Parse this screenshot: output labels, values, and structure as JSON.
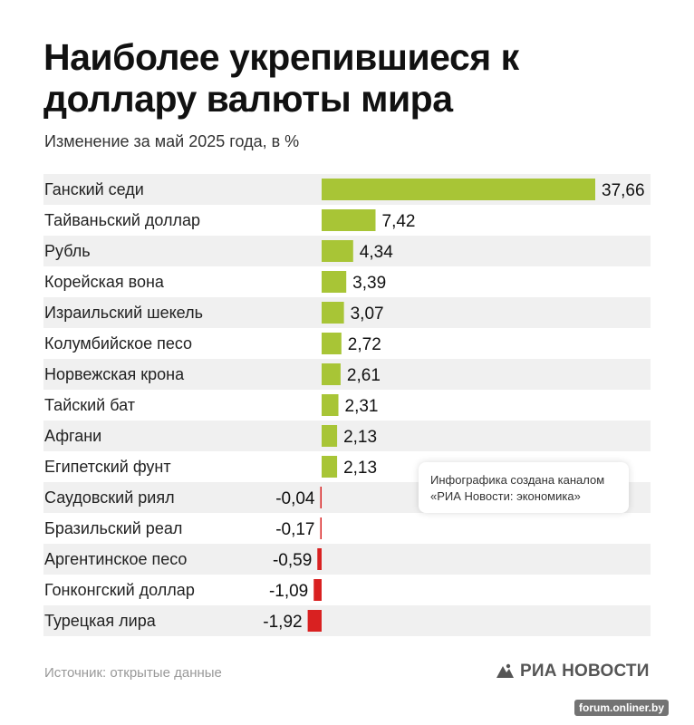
{
  "title": "Наиболее укрепившиеся к доллару валюты мира",
  "subtitle": "Изменение за май 2025 года, в %",
  "note": "Инфографика создана каналом «РИА Новости: экономика»",
  "source": "Источник: открытые данные",
  "brand": "РИА НОВОСТИ",
  "watermark": "forum.onliner.by",
  "colors": {
    "positive": "#a8c536",
    "negative": "#d92121",
    "row_stripe": "#f0f0f0"
  },
  "chart_data": {
    "type": "bar",
    "orientation": "horizontal",
    "categories": [
      "Ганский седи",
      "Тайваньский доллар",
      "Рубль",
      "Корейская вона",
      "Израильский шекель",
      "Колумбийское песо",
      "Норвежская крона",
      "Тайский бат",
      "Афгани",
      "Египетский фунт",
      "Саудовский риял",
      "Бразильский реал",
      "Аргентинское песо",
      "Гонконгский доллар",
      "Турецкая лира"
    ],
    "values": [
      37.66,
      7.42,
      4.34,
      3.39,
      3.07,
      2.72,
      2.61,
      2.31,
      2.13,
      2.13,
      -0.04,
      -0.17,
      -0.59,
      -1.09,
      -1.92
    ],
    "labels": [
      "37,66",
      "7,42",
      "4,34",
      "3,39",
      "3,07",
      "2,72",
      "2,61",
      "2,31",
      "2,13",
      "2,13",
      "-0,04",
      "-0,17",
      "-0,59",
      "-1,09",
      "-1,92"
    ],
    "title": "Наиболее укрепившиеся к доллару валюты мира",
    "xlabel": "",
    "ylabel": "",
    "grid": false
  }
}
